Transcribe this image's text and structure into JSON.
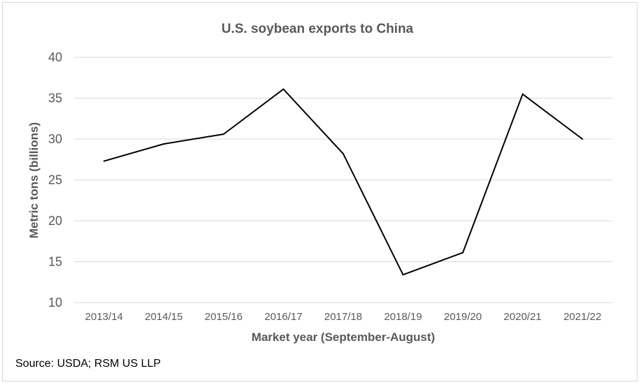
{
  "chart_data": {
    "type": "line",
    "title": "U.S. soybean exports to China",
    "xlabel": "Market year (September-August)",
    "ylabel": "Metric tons (billions)",
    "ylim": [
      10,
      40
    ],
    "yticks": [
      "10",
      "15",
      "20",
      "25",
      "30",
      "35",
      "40"
    ],
    "grid": true,
    "categories": [
      "2013/14",
      "2014/15",
      "2015/16",
      "2016/17",
      "2017/18",
      "2018/19",
      "2019/20",
      "2020/21",
      "2021/22"
    ],
    "series": [
      {
        "values": [
          27.3,
          29.4,
          30.6,
          36.1,
          28.2,
          13.4,
          16.1,
          35.5,
          30.0
        ],
        "color": "#000000"
      }
    ]
  },
  "source": "Source: USDA; RSM US LLP"
}
